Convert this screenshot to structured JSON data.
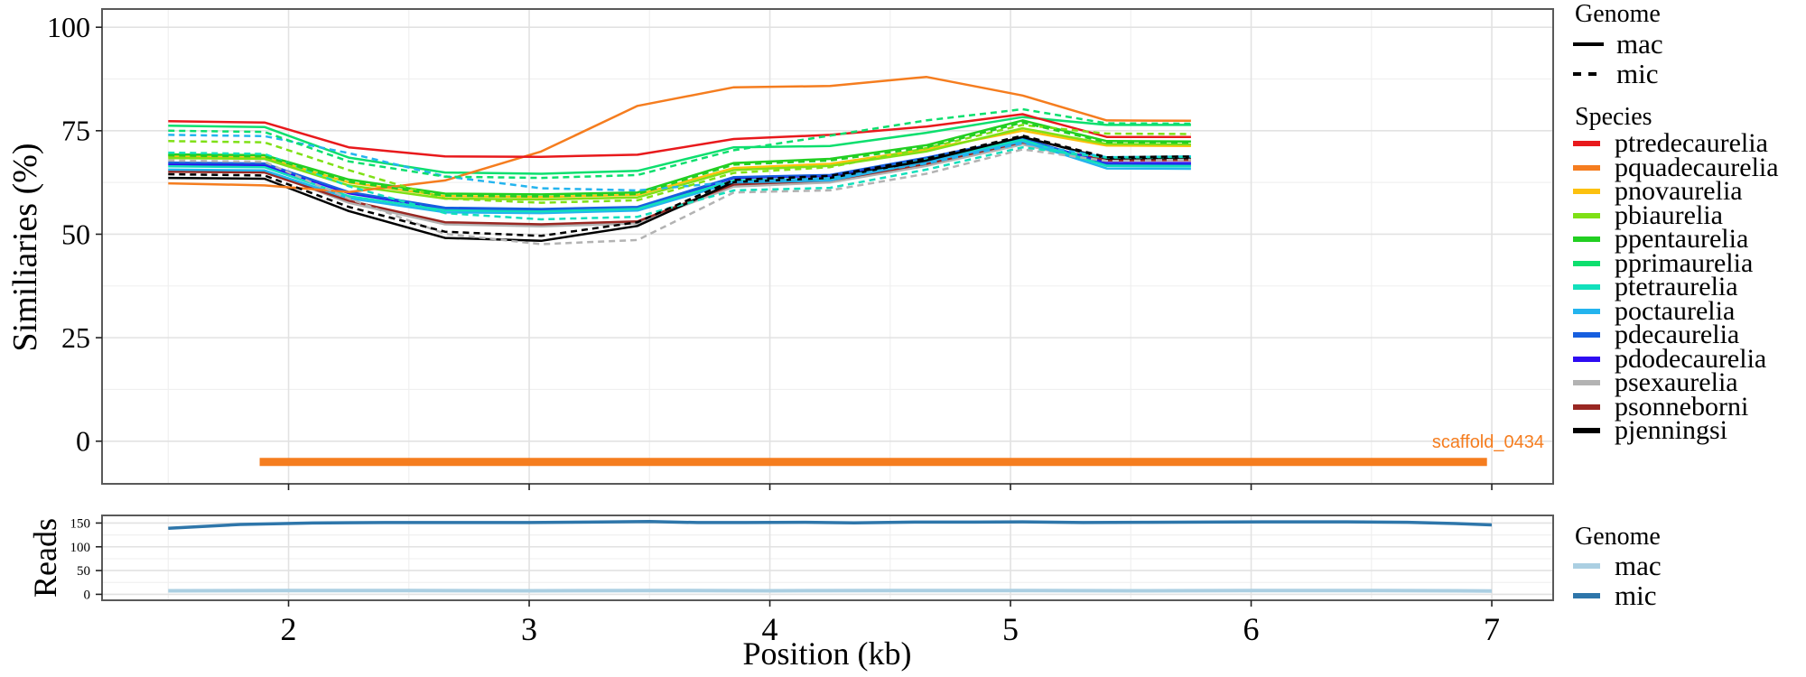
{
  "figure": {
    "background": "#ffffff",
    "panel_border_color": "#595959",
    "grid_major_color": "#e2e2e2",
    "grid_minor_color": "#f0f0f0",
    "tick_color": "#222222",
    "text_color": "#000000"
  },
  "chart_data": [
    {
      "type": "line",
      "name": "similarity-panel",
      "ylabel": "Similiaries (%)",
      "xlabel": "Position (kb)",
      "xlim": [
        1.225,
        7.255
      ],
      "ylim": [
        -10.3,
        104.4
      ],
      "xticks": [
        2,
        3,
        4,
        5,
        6,
        7
      ],
      "xminor": [
        1.5,
        2.5,
        3.5,
        4.5,
        5.5,
        6.5
      ],
      "yticks": [
        0,
        25,
        50,
        75,
        100
      ],
      "yminor": [
        12.5,
        37.5,
        62.5,
        87.5
      ],
      "x": [
        1.5,
        1.9,
        2.25,
        2.65,
        3.05,
        3.45,
        3.85,
        4.25,
        4.65,
        5.05,
        5.4,
        5.75
      ],
      "series": [
        {
          "species": "psexaurelia",
          "genome": "mac",
          "color": "#b3b3b3",
          "dash": false,
          "values": [
            65.5,
            65.3,
            57.6,
            52.4,
            51.9,
            52.6,
            61.5,
            62.5,
            66.5,
            71.7,
            67.0,
            67.1
          ]
        },
        {
          "species": "psonneborni",
          "genome": "mac",
          "color": "#992722",
          "dash": false,
          "values": [
            65.1,
            64.9,
            58.1,
            52.9,
            52.4,
            53.1,
            62.0,
            63.0,
            67.0,
            72.2,
            67.8,
            67.9
          ]
        },
        {
          "species": "pdodecaurelia",
          "genome": "mac",
          "color": "#2e0cf2",
          "dash": false,
          "values": [
            66.9,
            66.7,
            59.9,
            56.2,
            55.9,
            56.4,
            63.6,
            64.1,
            68.3,
            73.0,
            67.2,
            67.2
          ]
        },
        {
          "species": "pdecaurelia",
          "genome": "mac",
          "color": "#175fdf",
          "dash": false,
          "values": [
            67.3,
            67.1,
            60.2,
            56.4,
            56.1,
            56.6,
            63.8,
            64.3,
            68.5,
            73.2,
            66.8,
            66.7
          ]
        },
        {
          "species": "poctaurelia",
          "genome": "mac",
          "color": "#24b4ee",
          "dash": false,
          "values": [
            65.6,
            65.4,
            58.7,
            55.3,
            55.1,
            55.7,
            62.5,
            63.0,
            67.5,
            72.4,
            65.9,
            65.8
          ]
        },
        {
          "species": "ptetraurelia",
          "genome": "mac",
          "color": "#12e0bc",
          "dash": false,
          "values": [
            66.4,
            66.2,
            59.2,
            55.8,
            55.5,
            56.1,
            63.0,
            63.5,
            68.0,
            72.8,
            66.5,
            66.4
          ]
        },
        {
          "species": "pnovaurelia",
          "genome": "mac",
          "color": "#fcc10f",
          "dash": false,
          "values": [
            68.8,
            68.5,
            62.5,
            59.2,
            59.0,
            59.5,
            66.0,
            67.0,
            70.5,
            75.0,
            71.4,
            71.3
          ]
        },
        {
          "species": "pbiaurelia",
          "genome": "mac",
          "color": "#7fe016",
          "dash": false,
          "values": [
            68.4,
            68.2,
            61.8,
            58.6,
            58.4,
            58.9,
            65.5,
            66.5,
            70.0,
            75.6,
            71.8,
            71.7
          ]
        },
        {
          "species": "ppentaurelia",
          "genome": "mac",
          "color": "#22cf22",
          "dash": false,
          "values": [
            69.3,
            69.1,
            63.2,
            59.8,
            59.6,
            60.1,
            67.2,
            68.2,
            71.5,
            77.5,
            72.5,
            72.4
          ]
        },
        {
          "species": "pprimaurelia",
          "genome": "mac",
          "color": "#0ddf6e",
          "dash": false,
          "values": [
            76.2,
            75.9,
            68.5,
            64.9,
            64.6,
            65.3,
            71.0,
            71.3,
            74.5,
            78.3,
            76.4,
            76.4
          ]
        },
        {
          "species": "pjenningsi",
          "genome": "mac",
          "color": "#000000",
          "dash": false,
          "values": [
            63.6,
            63.4,
            55.6,
            49.1,
            48.4,
            52.0,
            62.6,
            63.6,
            67.8,
            73.5,
            68.3,
            68.4
          ]
        },
        {
          "species": "pquadecaurelia",
          "genome": "mac",
          "color": "#f57d1f",
          "dash": false,
          "values": [
            62.3,
            61.8,
            60.2,
            63.0,
            70.0,
            81.0,
            85.5,
            85.8,
            88.0,
            83.5,
            77.5,
            77.4
          ]
        },
        {
          "species": "ptredecaurelia",
          "genome": "mac",
          "color": "#e8191c",
          "dash": false,
          "values": [
            77.3,
            77.0,
            71.0,
            68.8,
            68.7,
            69.2,
            73.0,
            74.0,
            76.0,
            79.0,
            73.5,
            73.5
          ]
        },
        {
          "species": "psexaurelia",
          "genome": "mic",
          "color": "#b3b3b3",
          "dash": true,
          "values": [
            67.8,
            67.5,
            58.6,
            50.1,
            47.6,
            48.6,
            60.1,
            60.6,
            64.6,
            70.5,
            67.7,
            68.0
          ]
        },
        {
          "species": "poctaurelia",
          "genome": "mic",
          "color": "#24b4ee",
          "dash": true,
          "values": [
            74.0,
            73.7,
            69.6,
            64.0,
            61.1,
            60.6,
            62.6,
            63.6,
            67.1,
            72.0,
            68.6,
            68.8
          ]
        },
        {
          "species": "ptetraurelia",
          "genome": "mic",
          "color": "#12e0bc",
          "dash": true,
          "values": [
            69.7,
            69.4,
            61.6,
            55.1,
            53.6,
            54.2,
            60.6,
            61.2,
            65.6,
            71.0,
            68.5,
            68.7
          ]
        },
        {
          "species": "pbiaurelia",
          "genome": "mic",
          "color": "#7fe016",
          "dash": true,
          "values": [
            72.5,
            72.2,
            65.5,
            58.6,
            57.6,
            58.2,
            64.8,
            66.2,
            70.8,
            76.4,
            74.3,
            74.2
          ]
        },
        {
          "species": "ppentaurelia",
          "genome": "mic",
          "color": "#22cf22",
          "dash": true,
          "values": [
            69.0,
            68.8,
            62.7,
            59.3,
            59.1,
            59.7,
            66.8,
            67.8,
            71.0,
            77.0,
            72.2,
            72.1
          ]
        },
        {
          "species": "pjenningsi",
          "genome": "mic",
          "color": "#000000",
          "dash": true,
          "values": [
            64.5,
            64.2,
            56.6,
            50.6,
            49.6,
            52.9,
            63.1,
            64.1,
            68.3,
            73.8,
            68.6,
            68.8
          ]
        },
        {
          "species": "pprimaurelia",
          "genome": "mic",
          "color": "#0ddf6e",
          "dash": true,
          "values": [
            75.0,
            74.7,
            67.6,
            63.9,
            63.6,
            64.3,
            70.3,
            73.8,
            77.5,
            80.2,
            76.8,
            76.7
          ]
        }
      ],
      "scaffold": {
        "label": "scaffold_0434",
        "color": "#f57d1f",
        "y": -5,
        "x_start": 1.88,
        "x_end": 6.98
      }
    },
    {
      "type": "line",
      "name": "reads-panel",
      "ylabel": "Reads",
      "xlim": [
        1.225,
        7.255
      ],
      "ylim": [
        -12.5,
        166
      ],
      "xticks": [
        2,
        3,
        4,
        5,
        6,
        7
      ],
      "xminor": [
        1.5,
        2.5,
        3.5,
        4.5,
        5.5,
        6.5
      ],
      "yticks": [
        0,
        50,
        100,
        150
      ],
      "yminor": [
        25,
        75,
        125
      ],
      "series": [
        {
          "species": "mac",
          "genome": "mac",
          "color": "#abcfe2",
          "width": 4,
          "points": [
            [
              1.5,
              7.5
            ],
            [
              2.0,
              8
            ],
            [
              2.5,
              8
            ],
            [
              3.0,
              7.5
            ],
            [
              3.5,
              8
            ],
            [
              4.0,
              7.5
            ],
            [
              4.5,
              8
            ],
            [
              5.0,
              8
            ],
            [
              5.5,
              7.5
            ],
            [
              6.0,
              8
            ],
            [
              6.5,
              8
            ],
            [
              6.85,
              7.5
            ],
            [
              7.0,
              7
            ]
          ]
        },
        {
          "species": "mic",
          "genome": "mic",
          "color": "#2e76aa",
          "width": 3.5,
          "points": [
            [
              1.5,
              139
            ],
            [
              1.8,
              147
            ],
            [
              2.1,
              150
            ],
            [
              2.4,
              151
            ],
            [
              2.7,
              151
            ],
            [
              3.0,
              151
            ],
            [
              3.25,
              152
            ],
            [
              3.5,
              153
            ],
            [
              3.7,
              151
            ],
            [
              3.9,
              151
            ],
            [
              4.15,
              151.5
            ],
            [
              4.35,
              150.5
            ],
            [
              4.6,
              152
            ],
            [
              4.85,
              152
            ],
            [
              5.05,
              152.5
            ],
            [
              5.3,
              151
            ],
            [
              5.55,
              151.5
            ],
            [
              5.8,
              152
            ],
            [
              6.1,
              152.5
            ],
            [
              6.4,
              152.5
            ],
            [
              6.65,
              151.5
            ],
            [
              6.85,
              149
            ],
            [
              7.0,
              146
            ]
          ]
        }
      ]
    }
  ],
  "legends": {
    "genome_lines": {
      "title": "Genome",
      "items": [
        {
          "label": "mac",
          "style": "solid"
        },
        {
          "label": "mic",
          "style": "dashed"
        }
      ]
    },
    "species": {
      "title": "Species",
      "items": [
        {
          "label": "ptredecaurelia",
          "color": "#e8191c"
        },
        {
          "label": "pquadecaurelia",
          "color": "#f57d1f"
        },
        {
          "label": "pnovaurelia",
          "color": "#fcc10f"
        },
        {
          "label": "pbiaurelia",
          "color": "#7fe016"
        },
        {
          "label": "ppentaurelia",
          "color": "#22cf22"
        },
        {
          "label": "pprimaurelia",
          "color": "#0ddf6e"
        },
        {
          "label": "ptetraurelia",
          "color": "#12e0bc"
        },
        {
          "label": "poctaurelia",
          "color": "#24b4ee"
        },
        {
          "label": "pdecaurelia",
          "color": "#175fdf"
        },
        {
          "label": "pdodecaurelia",
          "color": "#2e0cf2"
        },
        {
          "label": "psexaurelia",
          "color": "#b3b3b3"
        },
        {
          "label": "psonneborni",
          "color": "#992722"
        },
        {
          "label": "pjenningsi",
          "color": "#000000"
        }
      ]
    },
    "genome_reads": {
      "title": "Genome",
      "items": [
        {
          "label": "mac",
          "color": "#abcfe2"
        },
        {
          "label": "mic",
          "color": "#2e76aa"
        }
      ]
    }
  }
}
